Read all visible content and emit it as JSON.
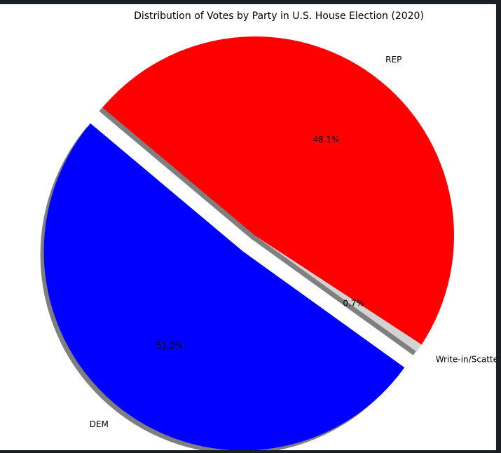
{
  "chart_data": {
    "type": "pie",
    "title": "Distribution of Votes by Party in U.S. House Election (2020)",
    "start_angle_deg": 140,
    "direction": "counterclockwise",
    "shadow": true,
    "slices": [
      {
        "label": "DEM",
        "value": 51.2,
        "pct_label": "51.2%",
        "color": "#0000ff",
        "explode": 0.1
      },
      {
        "label": "Write-in/Scattering/Blank",
        "value": 0.7,
        "pct_label": "0.7%",
        "color": "#d3d3d3",
        "explode": 0.0
      },
      {
        "label": "REP",
        "value": 48.1,
        "pct_label": "48.1%",
        "color": "#ff0000",
        "explode": 0.0
      }
    ]
  }
}
